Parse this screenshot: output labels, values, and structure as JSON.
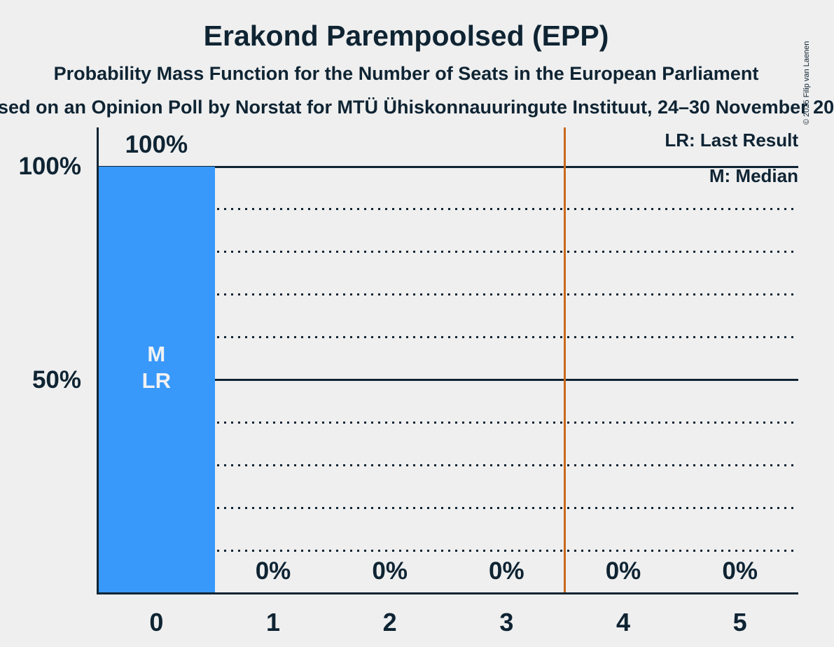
{
  "header": {
    "copyright": "© 2025 Filip van Laenen"
  },
  "chart_data": {
    "type": "bar",
    "title": "Erakond Parempoolsed (EPP)",
    "subtitle": "Probability Mass Function for the Number of Seats in the European Parliament",
    "source": "sed on an Opinion Poll by Norstat for MTÜ Ühiskonnauuringute Instituut, 24–30 November 20",
    "categories": [
      "0",
      "1",
      "2",
      "3",
      "4",
      "5"
    ],
    "values": [
      100,
      0,
      0,
      0,
      0,
      0
    ],
    "value_labels": [
      "100%",
      "0%",
      "0%",
      "0%",
      "0%",
      "0%"
    ],
    "xlabel": "",
    "ylabel": "",
    "ylim": [
      0,
      109
    ],
    "grid": true,
    "legend_position": "top-right",
    "legend": {
      "lr": "LR: Last Result",
      "m": "M: Median"
    },
    "y_ticks": [
      {
        "value": 100,
        "label": "100%"
      },
      {
        "value": 50,
        "label": "50%"
      }
    ],
    "y_gridlines": [
      {
        "value": 100,
        "style": "solid"
      },
      {
        "value": 90,
        "style": "dotted"
      },
      {
        "value": 80,
        "style": "dotted"
      },
      {
        "value": 70,
        "style": "dotted"
      },
      {
        "value": 60,
        "style": "dotted"
      },
      {
        "value": 50,
        "style": "solid"
      },
      {
        "value": 40,
        "style": "dotted"
      },
      {
        "value": 30,
        "style": "dotted"
      },
      {
        "value": 20,
        "style": "dotted"
      },
      {
        "value": 10,
        "style": "dotted"
      }
    ],
    "reference_line": {
      "x": 3.5,
      "color": "#c8691c",
      "meaning": "LR"
    },
    "annotated_bar": {
      "index": 0,
      "lines": [
        "M",
        "LR"
      ]
    },
    "colors": {
      "background": "#efefef",
      "text": "#0f2433",
      "bar": "#3899fb",
      "reference_line": "#c8691c"
    }
  }
}
